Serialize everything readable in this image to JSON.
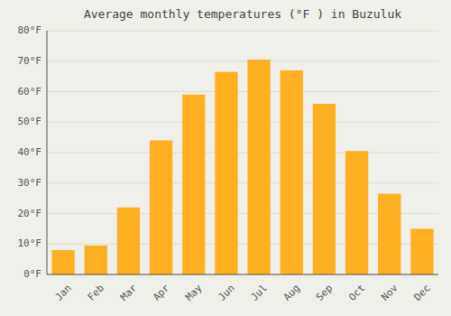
{
  "chart_data": {
    "type": "bar",
    "title": "Average monthly temperatures (°F ) in Buzuluk",
    "categories": [
      "Jan",
      "Feb",
      "Mar",
      "Apr",
      "May",
      "Jun",
      "Jul",
      "Aug",
      "Sep",
      "Oct",
      "Nov",
      "Dec"
    ],
    "values": [
      8,
      9.5,
      22,
      44,
      59,
      66.5,
      70.5,
      67,
      56,
      40.5,
      26.5,
      15
    ],
    "color": "#FFB020",
    "ylim": [
      0,
      80
    ],
    "yticks": [
      {
        "value": 0,
        "label": "0°F"
      },
      {
        "value": 10,
        "label": "10°F"
      },
      {
        "value": 20,
        "label": "20°F"
      },
      {
        "value": 30,
        "label": "30°F"
      },
      {
        "value": 40,
        "label": "40°F"
      },
      {
        "value": 50,
        "label": "50°F"
      },
      {
        "value": 60,
        "label": "60°F"
      },
      {
        "value": 70,
        "label": "70°F"
      },
      {
        "value": 80,
        "label": "80°F"
      }
    ],
    "grid": true
  }
}
